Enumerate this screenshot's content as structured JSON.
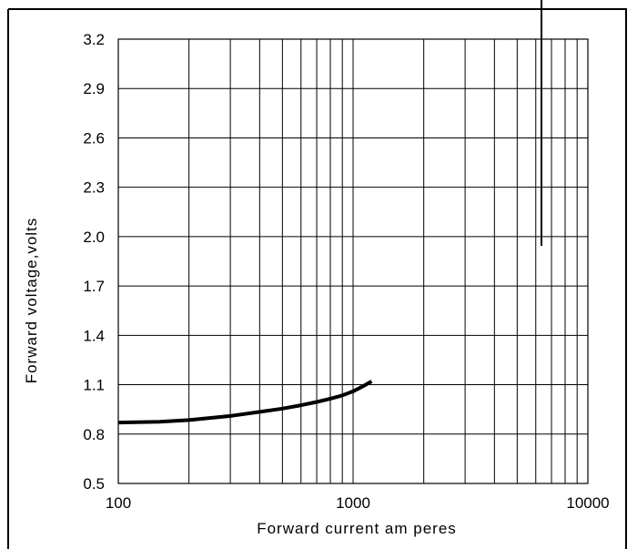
{
  "chart_data": {
    "type": "line",
    "xlabel": "Forward current   am peres",
    "ylabel": "Forward voltage,volts",
    "x_scale": "log",
    "xlim": [
      100,
      10000
    ],
    "ylim": [
      0.5,
      3.2
    ],
    "x_ticks": [
      "100",
      "1000",
      "10000"
    ],
    "y_ticks": [
      "3.2",
      "2.9",
      "2.6",
      "2.3",
      "2.0",
      "1.7",
      "1.4",
      "1.1",
      "0.8",
      "0.5"
    ],
    "grid": true,
    "series": [
      {
        "points": [
          {
            "x": 100,
            "y": 0.87
          },
          {
            "x": 150,
            "y": 0.875
          },
          {
            "x": 200,
            "y": 0.885
          },
          {
            "x": 300,
            "y": 0.91
          },
          {
            "x": 400,
            "y": 0.935
          },
          {
            "x": 500,
            "y": 0.955
          },
          {
            "x": 600,
            "y": 0.975
          },
          {
            "x": 700,
            "y": 0.995
          },
          {
            "x": 800,
            "y": 1.015
          },
          {
            "x": 900,
            "y": 1.035
          },
          {
            "x": 1000,
            "y": 1.06
          },
          {
            "x": 1100,
            "y": 1.09
          },
          {
            "x": 1200,
            "y": 1.12
          }
        ]
      }
    ]
  }
}
